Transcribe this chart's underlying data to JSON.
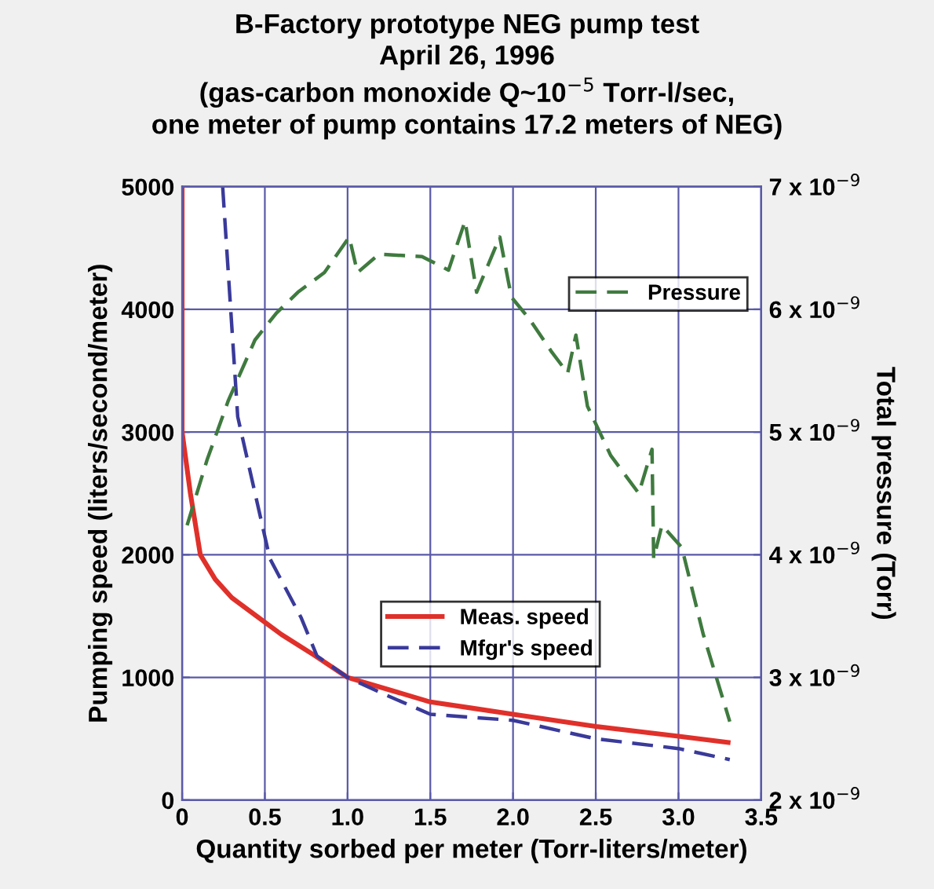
{
  "chart_data": {
    "type": "line",
    "title": "B-Factory prototype NEG pump test\nApril 26, 1996\n(gas-carbon monoxide Q~10$^{−5}$ Torr-l/sec,\none meter of pump contains 17.2 meters of NEG)",
    "xlabel": "Quantity sorbed per meter (Torr-liters/meter)",
    "ylabel": "Pumping speed (liters/second/meter)",
    "y2label": "Total pressure (Torr)",
    "xlim": [
      0,
      3.5
    ],
    "xticks": [
      0,
      0.5,
      {
        "value": 1.0,
        "label": "1.0"
      },
      1.5,
      {
        "value": 2.0,
        "label": "2.0"
      },
      2.5,
      {
        "value": 3.0,
        "label": "3.0"
      },
      3.5
    ],
    "ylim": [
      0,
      5000
    ],
    "yticks": [
      0,
      1000,
      2000,
      3000,
      4000,
      5000
    ],
    "y2lim": [
      2e-09,
      7e-09
    ],
    "y2ticks": [
      {
        "value": 2e-09,
        "label": "2 x 10$^{−9}$"
      },
      {
        "value": 3e-09,
        "label": "3 x 10$^{−9}$"
      },
      {
        "value": 4e-09,
        "label": "4 x 10$^{−9}$"
      },
      {
        "value": 5e-09,
        "label": "5 x 10$^{−9}$"
      },
      {
        "value": 6e-09,
        "label": "6 x 10$^{−9}$"
      },
      {
        "value": 7e-09,
        "label": "7 x 10$^{−9}$"
      }
    ],
    "grid": true,
    "legend": "right",
    "series": [
      {
        "name": "Meas. speed",
        "color": "#e0302a",
        "line_style": "solid",
        "x": [
          0,
          0,
          0.05,
          0.11,
          0.2,
          0.3,
          0.45,
          0.6,
          0.8,
          1.0,
          1.25,
          1.5,
          1.75,
          2.0,
          2.25,
          2.5,
          2.75,
          3.0,
          3.3
        ],
        "values": [
          5000,
          3000,
          2500,
          2000,
          1800,
          1650,
          1500,
          1350,
          1180,
          1000,
          900,
          800,
          750,
          700,
          650,
          600,
          560,
          520,
          470
        ]
      },
      {
        "name": "Mfgr's speed",
        "color": "#3a3a9a",
        "line_style": "dashed",
        "x": [
          0.245,
          0.336,
          0.53,
          0.72,
          0.815,
          1.0,
          1.21,
          1.5,
          2.0,
          2.5,
          3.0,
          3.31
        ],
        "values": [
          5000,
          3125,
          1970,
          1485,
          1175,
          1000,
          870,
          700,
          650,
          500,
          420,
          330
        ]
      },
      {
        "name": "Pressure",
        "color": "#3f7a3f",
        "line_style": "dashed",
        "axis": "y2",
        "x": [
          0.03,
          0.15,
          0.28,
          0.44,
          0.57,
          0.7,
          0.86,
          1.01,
          1.06,
          1.19,
          1.45,
          1.61,
          1.71,
          1.78,
          1.92,
          1.99,
          2.1,
          2.23,
          2.33,
          2.38,
          2.45,
          2.59,
          2.76,
          2.84,
          2.85,
          2.9,
          3.02,
          3.15,
          3.31
        ],
        "values": [
          4.24e-09,
          4.77e-09,
          5.26e-09,
          5.75e-09,
          5.97e-09,
          6.14e-09,
          6.3e-09,
          6.59e-09,
          6.3e-09,
          6.45e-09,
          6.43e-09,
          6.32e-09,
          6.72e-09,
          6.14e-09,
          6.59e-09,
          6.1e-09,
          5.92e-09,
          5.66e-09,
          5.48e-09,
          5.79e-09,
          5.21e-09,
          4.81e-09,
          4.5e-09,
          4.86e-09,
          3.97e-09,
          4.24e-09,
          4.06e-09,
          3.35e-09,
          2.64e-09
        ]
      }
    ]
  }
}
